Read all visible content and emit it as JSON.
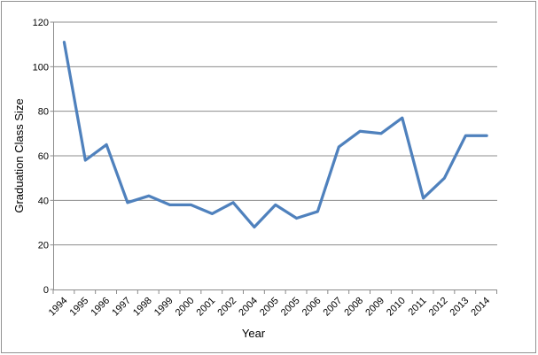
{
  "chart_data": {
    "type": "line",
    "title": "",
    "xlabel": "Year",
    "ylabel": "Graduation Class Size",
    "categories": [
      "1994",
      "1995",
      "1996",
      "1997",
      "1998",
      "1999",
      "2000",
      "2001",
      "2002",
      "2004",
      "2005",
      "2005",
      "2006",
      "2007",
      "2008",
      "2009",
      "2010",
      "2011",
      "2012",
      "2013",
      "2014"
    ],
    "values": [
      111,
      58,
      65,
      39,
      42,
      38,
      38,
      34,
      39,
      28,
      38,
      32,
      35,
      64,
      71,
      70,
      77,
      41,
      50,
      69,
      69
    ],
    "ylim": [
      0,
      120
    ],
    "yticks": [
      0,
      20,
      40,
      60,
      80,
      100,
      120
    ],
    "grid": true,
    "legend_position": "none",
    "line_color": "#4F81BD",
    "grid_color": "#8C8C8C",
    "axis_color": "#8C8C8C",
    "text_color": "#000000",
    "background_color": "#FFFFFF",
    "border_color": "#929292"
  }
}
